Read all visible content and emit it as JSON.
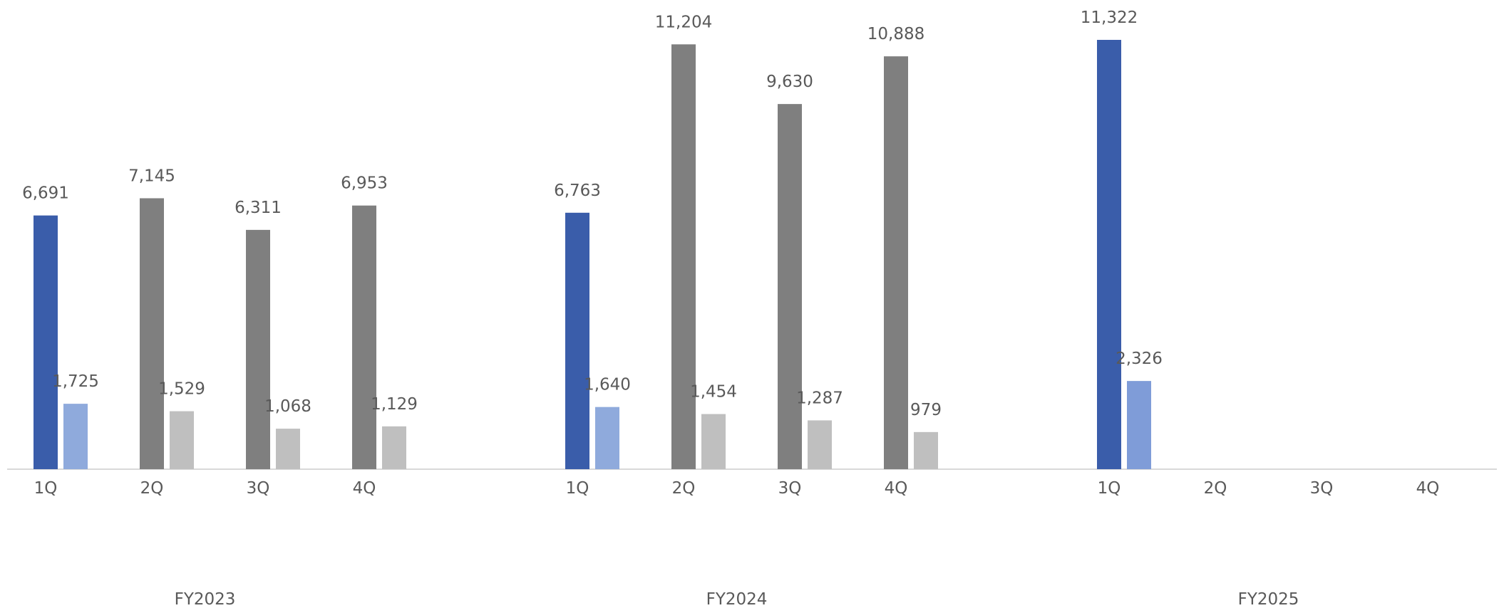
{
  "chart_data": {
    "type": "bar",
    "title": "",
    "xlabel": "",
    "ylabel": "",
    "ylim": [
      0,
      12000
    ],
    "grid": false,
    "legend": "none",
    "groups": [
      {
        "label": "FY2023",
        "quarters": [
          {
            "q": "1Q",
            "primary": 6691,
            "secondary": 1725,
            "primary_label": "6,691",
            "secondary_label": "1,725",
            "highlight": true
          },
          {
            "q": "2Q",
            "primary": 7145,
            "secondary": 1529,
            "primary_label": "7,145",
            "secondary_label": "1,529",
            "highlight": false
          },
          {
            "q": "3Q",
            "primary": 6311,
            "secondary": 1068,
            "primary_label": "6,311",
            "secondary_label": "1,068",
            "highlight": false
          },
          {
            "q": "4Q",
            "primary": 6953,
            "secondary": 1129,
            "primary_label": "6,953",
            "secondary_label": "1,129",
            "highlight": false
          }
        ]
      },
      {
        "label": "FY2024",
        "quarters": [
          {
            "q": "1Q",
            "primary": 6763,
            "secondary": 1640,
            "primary_label": "6,763",
            "secondary_label": "1,640",
            "highlight": true
          },
          {
            "q": "2Q",
            "primary": 11204,
            "secondary": 1454,
            "primary_label": "11,204",
            "secondary_label": "1,454",
            "highlight": false
          },
          {
            "q": "3Q",
            "primary": 9630,
            "secondary": 1287,
            "primary_label": "9,630",
            "secondary_label": "1,287",
            "highlight": false
          },
          {
            "q": "4Q",
            "primary": 10888,
            "secondary": 979,
            "primary_label": "10,888",
            "secondary_label": "979",
            "highlight": false
          }
        ]
      },
      {
        "label": "FY2025",
        "quarters": [
          {
            "q": "1Q",
            "primary": 11322,
            "secondary": 2326,
            "primary_label": "11,322",
            "secondary_label": "2,326",
            "highlight": true,
            "current": true
          },
          {
            "q": "2Q",
            "primary": null,
            "secondary": null,
            "primary_label": "",
            "secondary_label": "",
            "highlight": false
          },
          {
            "q": "3Q",
            "primary": null,
            "secondary": null,
            "primary_label": "",
            "secondary_label": "",
            "highlight": false
          },
          {
            "q": "4Q",
            "primary": null,
            "secondary": null,
            "primary_label": "",
            "secondary_label": "",
            "highlight": false
          }
        ]
      }
    ],
    "colors": {
      "highlight_primary": "#3A5DAA",
      "highlight_secondary_past": "#8FAADC",
      "highlight_secondary_current": "#7F9CD8",
      "primary": "#7F7F7F",
      "secondary": "#BFBFBF",
      "axis": "#D9D9D9",
      "text": "#595959"
    }
  }
}
